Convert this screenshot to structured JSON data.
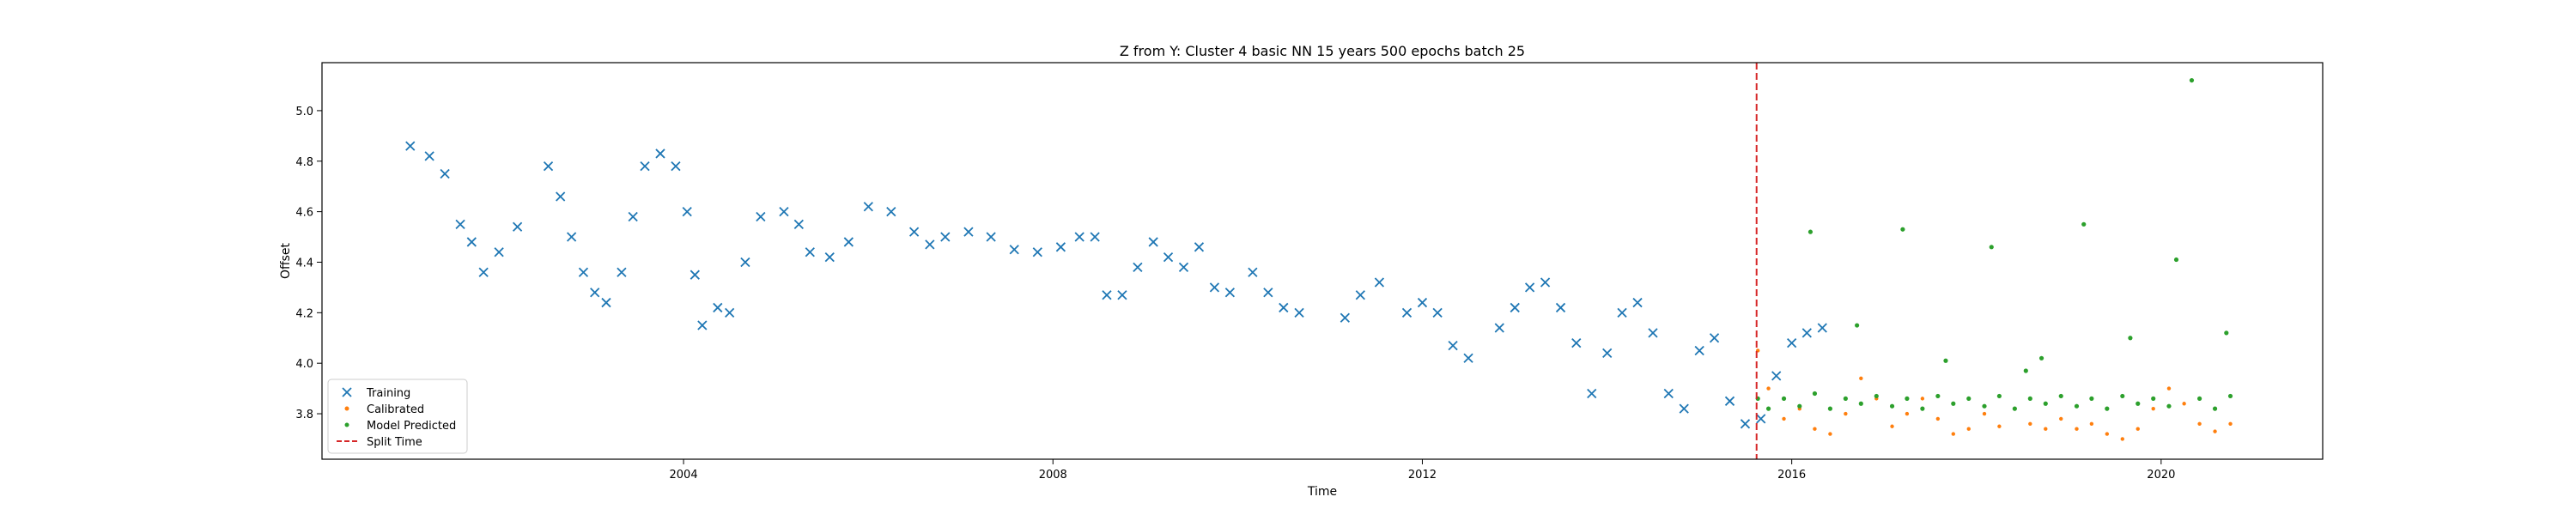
{
  "chart_data": {
    "type": "scatter",
    "title": "Z from Y: Cluster 4 basic NN 15 years 500 epochs batch 25",
    "xlabel": "Time",
    "ylabel": "Offset",
    "xlim": [
      "2000-02-01",
      "2021-10-01"
    ],
    "ylim": [
      3.62,
      5.19
    ],
    "xticks": [
      "2004",
      "2008",
      "2012",
      "2016",
      "2020"
    ],
    "yticks": [
      "3.8",
      "4.0",
      "4.2",
      "4.4",
      "4.6",
      "4.8",
      "5.0"
    ],
    "grid": false,
    "legend_position": "lower-left",
    "split_time": "2015-08-15",
    "series": [
      {
        "name": "Training",
        "marker": "x",
        "color": "#1f77b4",
        "points": [
          [
            "2001-01-15",
            4.86
          ],
          [
            "2001-04-01",
            4.82
          ],
          [
            "2001-06-01",
            4.75
          ],
          [
            "2001-08-01",
            4.55
          ],
          [
            "2001-09-15",
            4.48
          ],
          [
            "2001-11-01",
            4.36
          ],
          [
            "2002-01-01",
            4.44
          ],
          [
            "2002-03-15",
            4.54
          ],
          [
            "2002-07-15",
            4.78
          ],
          [
            "2002-09-01",
            4.66
          ],
          [
            "2002-10-15",
            4.5
          ],
          [
            "2002-12-01",
            4.36
          ],
          [
            "2003-01-15",
            4.28
          ],
          [
            "2003-03-01",
            4.24
          ],
          [
            "2003-05-01",
            4.36
          ],
          [
            "2003-06-15",
            4.58
          ],
          [
            "2003-08-01",
            4.78
          ],
          [
            "2003-10-01",
            4.83
          ],
          [
            "2003-12-01",
            4.78
          ],
          [
            "2004-01-15",
            4.6
          ],
          [
            "2004-02-15",
            4.35
          ],
          [
            "2004-03-15",
            4.15
          ],
          [
            "2004-05-15",
            4.22
          ],
          [
            "2004-07-01",
            4.2
          ],
          [
            "2004-09-01",
            4.4
          ],
          [
            "2004-11-01",
            4.58
          ],
          [
            "2005-02-01",
            4.6
          ],
          [
            "2005-04-01",
            4.55
          ],
          [
            "2005-05-15",
            4.44
          ],
          [
            "2005-08-01",
            4.42
          ],
          [
            "2005-10-15",
            4.48
          ],
          [
            "2006-01-01",
            4.62
          ],
          [
            "2006-04-01",
            4.6
          ],
          [
            "2006-07-01",
            4.52
          ],
          [
            "2006-09-01",
            4.47
          ],
          [
            "2006-11-01",
            4.5
          ],
          [
            "2007-02-01",
            4.52
          ],
          [
            "2007-05-01",
            4.5
          ],
          [
            "2007-08-01",
            4.45
          ],
          [
            "2007-11-01",
            4.44
          ],
          [
            "2008-02-01",
            4.46
          ],
          [
            "2008-04-15",
            4.5
          ],
          [
            "2008-06-15",
            4.5
          ],
          [
            "2008-08-01",
            4.27
          ],
          [
            "2008-10-01",
            4.27
          ],
          [
            "2008-12-01",
            4.38
          ],
          [
            "2009-02-01",
            4.48
          ],
          [
            "2009-04-01",
            4.42
          ],
          [
            "2009-06-01",
            4.38
          ],
          [
            "2009-08-01",
            4.46
          ],
          [
            "2009-10-01",
            4.3
          ],
          [
            "2009-12-01",
            4.28
          ],
          [
            "2010-03-01",
            4.36
          ],
          [
            "2010-05-01",
            4.28
          ],
          [
            "2010-07-01",
            4.22
          ],
          [
            "2010-09-01",
            4.2
          ],
          [
            "2011-03-01",
            4.18
          ],
          [
            "2011-05-01",
            4.27
          ],
          [
            "2011-07-15",
            4.32
          ],
          [
            "2011-11-01",
            4.2
          ],
          [
            "2012-01-01",
            4.24
          ],
          [
            "2012-03-01",
            4.2
          ],
          [
            "2012-05-01",
            4.07
          ],
          [
            "2012-07-01",
            4.02
          ],
          [
            "2012-11-01",
            4.14
          ],
          [
            "2013-01-01",
            4.22
          ],
          [
            "2013-03-01",
            4.3
          ],
          [
            "2013-05-01",
            4.32
          ],
          [
            "2013-07-01",
            4.22
          ],
          [
            "2013-09-01",
            4.08
          ],
          [
            "2013-11-01",
            3.88
          ],
          [
            "2014-01-01",
            4.04
          ],
          [
            "2014-03-01",
            4.2
          ],
          [
            "2014-05-01",
            4.24
          ],
          [
            "2014-07-01",
            4.12
          ],
          [
            "2014-09-01",
            3.88
          ],
          [
            "2014-11-01",
            3.82
          ],
          [
            "2015-01-01",
            4.05
          ],
          [
            "2015-03-01",
            4.1
          ],
          [
            "2015-05-01",
            3.85
          ],
          [
            "2015-07-01",
            3.76
          ],
          [
            "2015-09-01",
            3.78
          ],
          [
            "2015-11-01",
            3.95
          ],
          [
            "2016-01-01",
            4.08
          ],
          [
            "2016-03-01",
            4.12
          ],
          [
            "2016-05-01",
            4.14
          ]
        ]
      },
      {
        "name": "Calibrated",
        "marker": "dot",
        "color": "#ff7f0e",
        "points": [
          [
            "2015-08-20",
            4.05
          ],
          [
            "2015-10-01",
            3.9
          ],
          [
            "2015-12-01",
            3.78
          ],
          [
            "2016-02-01",
            3.82
          ],
          [
            "2016-04-01",
            3.74
          ],
          [
            "2016-06-01",
            3.72
          ],
          [
            "2016-08-01",
            3.8
          ],
          [
            "2016-10-01",
            3.94
          ],
          [
            "2016-12-01",
            3.86
          ],
          [
            "2017-02-01",
            3.75
          ],
          [
            "2017-04-01",
            3.8
          ],
          [
            "2017-06-01",
            3.86
          ],
          [
            "2017-08-01",
            3.78
          ],
          [
            "2017-10-01",
            3.72
          ],
          [
            "2017-12-01",
            3.74
          ],
          [
            "2018-02-01",
            3.8
          ],
          [
            "2018-04-01",
            3.75
          ],
          [
            "2018-06-01",
            3.82
          ],
          [
            "2018-08-01",
            3.76
          ],
          [
            "2018-10-01",
            3.74
          ],
          [
            "2018-12-01",
            3.78
          ],
          [
            "2019-02-01",
            3.74
          ],
          [
            "2019-04-01",
            3.76
          ],
          [
            "2019-06-01",
            3.72
          ],
          [
            "2019-08-01",
            3.7
          ],
          [
            "2019-10-01",
            3.74
          ],
          [
            "2019-12-01",
            3.82
          ],
          [
            "2020-02-01",
            3.9
          ],
          [
            "2020-04-01",
            3.84
          ],
          [
            "2020-06-01",
            3.76
          ],
          [
            "2020-08-01",
            3.73
          ],
          [
            "2020-10-01",
            3.76
          ]
        ]
      },
      {
        "name": "Model Predicted",
        "marker": "dot",
        "color": "#2ca02c",
        "points": [
          [
            "2015-08-20",
            3.86
          ],
          [
            "2015-10-01",
            3.82
          ],
          [
            "2015-12-01",
            3.86
          ],
          [
            "2016-02-01",
            3.83
          ],
          [
            "2016-04-01",
            3.88
          ],
          [
            "2016-06-01",
            3.82
          ],
          [
            "2016-08-01",
            3.86
          ],
          [
            "2016-10-01",
            3.84
          ],
          [
            "2016-12-01",
            3.87
          ],
          [
            "2017-02-01",
            3.83
          ],
          [
            "2017-04-01",
            3.86
          ],
          [
            "2017-06-01",
            3.82
          ],
          [
            "2017-08-01",
            3.87
          ],
          [
            "2017-10-01",
            3.84
          ],
          [
            "2017-12-01",
            3.86
          ],
          [
            "2018-02-01",
            3.83
          ],
          [
            "2018-04-01",
            3.87
          ],
          [
            "2018-06-01",
            3.82
          ],
          [
            "2018-08-01",
            3.86
          ],
          [
            "2018-10-01",
            3.84
          ],
          [
            "2018-12-01",
            3.87
          ],
          [
            "2019-02-01",
            3.83
          ],
          [
            "2019-04-01",
            3.86
          ],
          [
            "2019-06-01",
            3.82
          ],
          [
            "2019-08-01",
            3.87
          ],
          [
            "2019-10-01",
            3.84
          ],
          [
            "2019-12-01",
            3.86
          ],
          [
            "2020-02-01",
            3.83
          ],
          [
            "2020-06-01",
            3.86
          ],
          [
            "2020-08-01",
            3.82
          ],
          [
            "2020-10-01",
            3.87
          ],
          [
            "2016-03-15",
            4.52
          ],
          [
            "2016-09-15",
            4.15
          ],
          [
            "2017-03-15",
            4.53
          ],
          [
            "2017-09-01",
            4.01
          ],
          [
            "2018-03-01",
            4.46
          ],
          [
            "2018-07-15",
            3.97
          ],
          [
            "2018-09-15",
            4.02
          ],
          [
            "2019-03-01",
            4.55
          ],
          [
            "2019-09-01",
            4.1
          ],
          [
            "2020-03-01",
            4.41
          ],
          [
            "2020-05-01",
            5.12
          ],
          [
            "2020-09-15",
            4.12
          ]
        ]
      }
    ],
    "legend": [
      "Training",
      "Calibrated",
      "Model Predicted",
      "Split Time"
    ],
    "split_color": "#d62728"
  }
}
